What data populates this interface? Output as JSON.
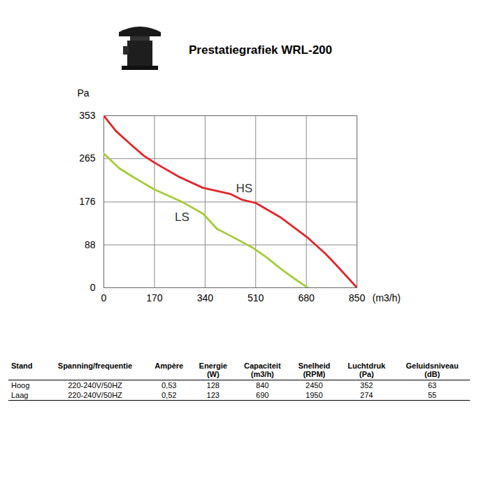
{
  "chart_data": {
    "type": "line",
    "title": "Prestatiegrafiek WRL-200",
    "x_label": "(m3/h)",
    "y_label": "Pa",
    "xlim": [
      0,
      850
    ],
    "ylim": [
      0,
      353
    ],
    "xticks": [
      0,
      170,
      340,
      510,
      680,
      850
    ],
    "yticks": [
      0,
      88,
      176,
      265,
      353
    ],
    "grid": true,
    "series": [
      {
        "name": "HS",
        "color": "#e0262b",
        "x": [
          0,
          40,
          87,
          134,
          169,
          251,
          333,
          427,
          462,
          510,
          592,
          686,
          744,
          780,
          850
        ],
        "values": [
          353,
          322,
          296,
          271,
          257,
          228,
          205,
          192,
          181,
          174,
          145,
          102,
          70,
          47,
          0
        ]
      },
      {
        "name": "LS",
        "color": "#a4cc3c",
        "x": [
          0,
          52,
          99,
          169,
          263,
          333,
          380,
          427,
          498,
          545,
          592,
          639,
          685
        ],
        "values": [
          275,
          245,
          227,
          202,
          176,
          152,
          121,
          106,
          83,
          63,
          40,
          19,
          0
        ]
      }
    ]
  },
  "table": {
    "header": [
      "Stand",
      "Spanning/frequentie",
      "Ampère",
      "Energie (W)",
      "Capaciteit (m3/h)",
      "Snelheid (RPM)",
      "Luchtdruk (Pa)",
      "Geluidsniveau (dB)"
    ],
    "rows": [
      [
        "Hoog",
        "220-240V/50HZ",
        "0,53",
        "128",
        "840",
        "2450",
        "352",
        "63"
      ],
      [
        "Laag",
        "220-240V/50HZ",
        "0,52",
        "123",
        "690",
        "1950",
        "274",
        "55"
      ]
    ]
  }
}
